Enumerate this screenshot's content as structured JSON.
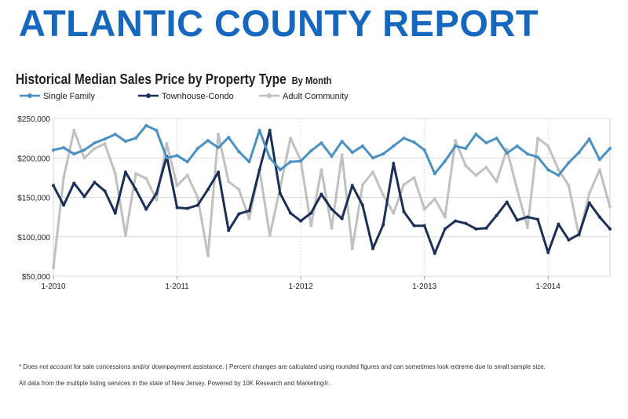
{
  "report_title": "ATLANTIC COUNTY REPORT",
  "footnotes": [
    "* Does not account for sale concessions and/or downpayment assistance. | Percent changes are calculated using rounded figures and can sometimes look extreme due to small sample size.",
    "All data from the multiple listing services in the state of New Jersey. Powered by 10K Research and Marketing®."
  ],
  "chart_data": {
    "type": "line",
    "title": "Historical Median Sales Price by Property Type",
    "subtitle": "By Month",
    "xlabel": "",
    "ylabel": "",
    "ylim": [
      50000,
      250000
    ],
    "y_ticks": [
      {
        "value": 50000,
        "label": "$50,000"
      },
      {
        "value": 100000,
        "label": "$100,000"
      },
      {
        "value": 150000,
        "label": "$150,000"
      },
      {
        "value": 200000,
        "label": "$200,000"
      },
      {
        "value": 250000,
        "label": "$250,000"
      }
    ],
    "x_ticks": [
      {
        "index": 0,
        "label": "1-2010"
      },
      {
        "index": 12,
        "label": "1-2011"
      },
      {
        "index": 24,
        "label": "1-2012"
      },
      {
        "index": 36,
        "label": "1-2013"
      },
      {
        "index": 48,
        "label": "1-2014"
      }
    ],
    "x_start": "2010-01",
    "x_end": "2014-07",
    "grid": true,
    "legend_position": "top-left",
    "series": [
      {
        "name": "Single Family",
        "color": "#4a90c0",
        "values": [
          210000,
          213000,
          205000,
          210000,
          219000,
          224000,
          230000,
          221000,
          225000,
          241000,
          235000,
          200000,
          203000,
          195000,
          212000,
          222000,
          213000,
          226000,
          208000,
          195000,
          235000,
          200000,
          185000,
          195000,
          196000,
          209000,
          219000,
          202000,
          221000,
          207000,
          215000,
          200000,
          205000,
          215000,
          225000,
          220000,
          210000,
          180000,
          196000,
          215000,
          212000,
          230000,
          219000,
          225000,
          206000,
          215000,
          205000,
          201000,
          185000,
          178000,
          194000,
          207000,
          224000,
          198000,
          212000
        ]
      },
      {
        "name": "Townhouse-Condo",
        "color": "#1b2f57",
        "values": [
          165000,
          140000,
          168000,
          151000,
          169000,
          158000,
          130000,
          182000,
          160000,
          135000,
          155000,
          202000,
          137000,
          136000,
          140000,
          160000,
          182000,
          108000,
          129000,
          133000,
          185000,
          235000,
          155000,
          130000,
          120000,
          130000,
          154000,
          135000,
          123000,
          165000,
          140000,
          85000,
          115000,
          193000,
          132000,
          114000,
          114000,
          79000,
          110000,
          120000,
          117000,
          110000,
          111000,
          127000,
          144000,
          121000,
          125000,
          122000,
          80000,
          116000,
          96000,
          103000,
          143000,
          125000,
          110000
        ]
      },
      {
        "name": "Adult Community",
        "color": "#c0c0c0",
        "values": [
          61000,
          175000,
          235000,
          200000,
          212000,
          218000,
          180000,
          102000,
          180000,
          174000,
          147000,
          218000,
          165000,
          178000,
          150000,
          76000,
          230000,
          170000,
          160000,
          123000,
          185000,
          102000,
          162000,
          225000,
          197000,
          114000,
          185000,
          111000,
          204000,
          85000,
          166000,
          182000,
          153000,
          130000,
          166000,
          175000,
          135000,
          148000,
          125000,
          222000,
          190000,
          178000,
          188000,
          170000,
          211000,
          160000,
          112000,
          225000,
          215000,
          185000,
          165000,
          101000,
          155000,
          185000,
          138000
        ]
      }
    ]
  }
}
